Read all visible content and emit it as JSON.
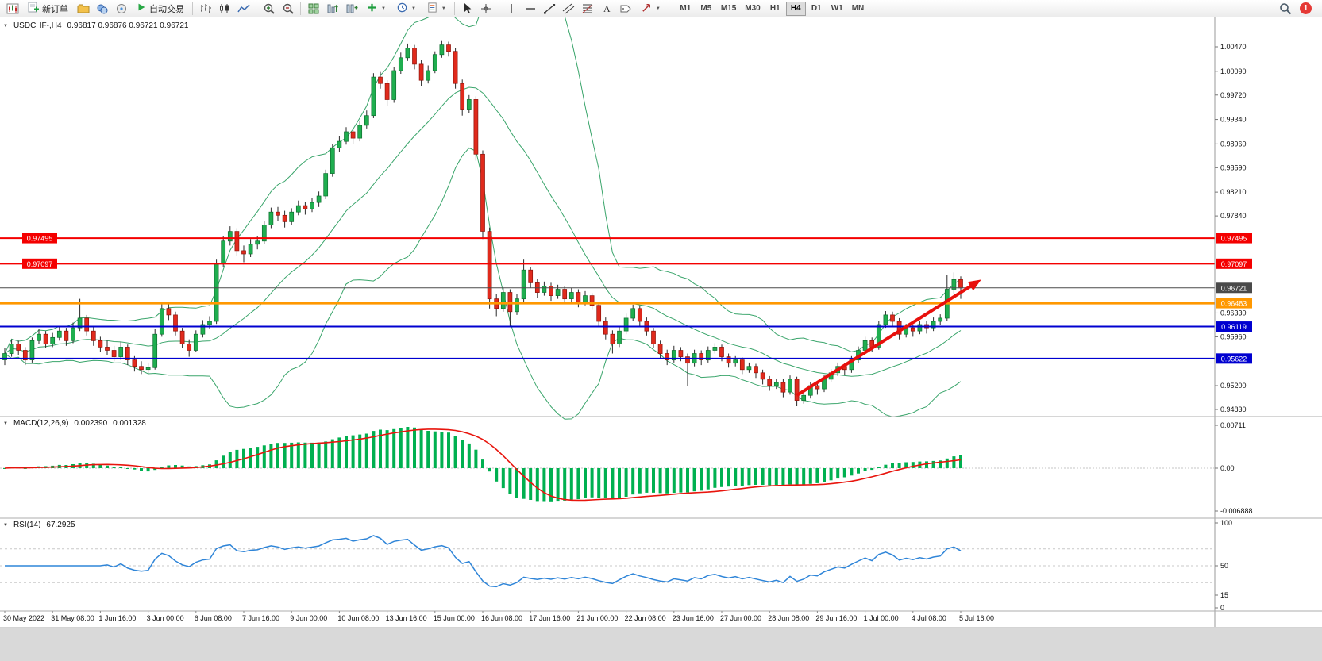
{
  "toolbar": {
    "new_order_label": "新订单",
    "autotrading_label": "自动交易",
    "timeframes": [
      "M1",
      "M5",
      "M15",
      "M30",
      "H1",
      "H4",
      "D1",
      "W1",
      "MN"
    ],
    "active_timeframe": "H4",
    "notification_count": "1"
  },
  "window": {
    "symbol_title": "USDCHF-,H4",
    "ohlc": "0.96817 0.96876 0.96721 0.96721"
  },
  "colors": {
    "bull": "#1fae4f",
    "bull_border": "#0e6e2f",
    "bear": "#e02a1c",
    "bear_border": "#8d130b",
    "wick": "#2a2a2a",
    "bollinger": "#3aa56b",
    "macd_hist": "#00b050",
    "macd_signal": "#e8150d",
    "rsi_line": "#2f85d8",
    "red": "#f40000",
    "blue": "#0000d0",
    "orange": "#ff9800",
    "dark": "#4a4a4a",
    "arrow": "#e8100c"
  },
  "chart_data": {
    "type": "candlestick",
    "symbol": "USDCHF-",
    "period": "H4",
    "candles": [
      [
        0.956,
        0.9578,
        0.9552,
        0.957
      ],
      [
        0.957,
        0.9592,
        0.9565,
        0.9585
      ],
      [
        0.9585,
        0.959,
        0.9568,
        0.9575
      ],
      [
        0.9575,
        0.958,
        0.9552,
        0.956
      ],
      [
        0.956,
        0.9595,
        0.9556,
        0.959
      ],
      [
        0.959,
        0.9608,
        0.9585,
        0.96
      ],
      [
        0.96,
        0.9605,
        0.9578,
        0.9585
      ],
      [
        0.9585,
        0.9602,
        0.958,
        0.9595
      ],
      [
        0.9595,
        0.9612,
        0.959,
        0.9605
      ],
      [
        0.9605,
        0.961,
        0.9582,
        0.959
      ],
      [
        0.959,
        0.9618,
        0.9586,
        0.961
      ],
      [
        0.961,
        0.9655,
        0.9605,
        0.9625
      ],
      [
        0.9625,
        0.963,
        0.9598,
        0.9605
      ],
      [
        0.9605,
        0.9612,
        0.9582,
        0.959
      ],
      [
        0.959,
        0.9596,
        0.9572,
        0.958
      ],
      [
        0.958,
        0.959,
        0.9568,
        0.9575
      ],
      [
        0.9575,
        0.9582,
        0.9558,
        0.9565
      ],
      [
        0.9565,
        0.9588,
        0.956,
        0.958
      ],
      [
        0.958,
        0.9584,
        0.9552,
        0.956
      ],
      [
        0.956,
        0.9566,
        0.9542,
        0.955
      ],
      [
        0.955,
        0.9558,
        0.9538,
        0.9545
      ],
      [
        0.9545,
        0.9556,
        0.9538,
        0.9548
      ],
      [
        0.9548,
        0.9608,
        0.9545,
        0.96
      ],
      [
        0.96,
        0.9648,
        0.9596,
        0.964
      ],
      [
        0.964,
        0.965,
        0.9622,
        0.963
      ],
      [
        0.963,
        0.9635,
        0.9598,
        0.9605
      ],
      [
        0.9605,
        0.961,
        0.9578,
        0.9585
      ],
      [
        0.9585,
        0.9592,
        0.9565,
        0.9575
      ],
      [
        0.9575,
        0.9606,
        0.9572,
        0.96
      ],
      [
        0.96,
        0.9622,
        0.9595,
        0.9615
      ],
      [
        0.9615,
        0.9628,
        0.9608,
        0.962
      ],
      [
        0.962,
        0.9716,
        0.9616,
        0.971
      ],
      [
        0.971,
        0.9752,
        0.9705,
        0.9745
      ],
      [
        0.9745,
        0.9768,
        0.9738,
        0.976
      ],
      [
        0.976,
        0.9765,
        0.9722,
        0.973
      ],
      [
        0.973,
        0.9738,
        0.9712,
        0.9725
      ],
      [
        0.9725,
        0.9748,
        0.972,
        0.974
      ],
      [
        0.974,
        0.9753,
        0.9732,
        0.9745
      ],
      [
        0.9745,
        0.9776,
        0.974,
        0.977
      ],
      [
        0.977,
        0.9797,
        0.9765,
        0.979
      ],
      [
        0.979,
        0.9798,
        0.9776,
        0.9785
      ],
      [
        0.9785,
        0.9792,
        0.9766,
        0.9775
      ],
      [
        0.9775,
        0.9796,
        0.977,
        0.979
      ],
      [
        0.979,
        0.9808,
        0.9785,
        0.98
      ],
      [
        0.98,
        0.9806,
        0.9786,
        0.9795
      ],
      [
        0.9795,
        0.9812,
        0.979,
        0.9805
      ],
      [
        0.9805,
        0.9822,
        0.9798,
        0.9815
      ],
      [
        0.9815,
        0.9856,
        0.981,
        0.985
      ],
      [
        0.985,
        0.9896,
        0.9845,
        0.989
      ],
      [
        0.989,
        0.9908,
        0.9884,
        0.99
      ],
      [
        0.99,
        0.9922,
        0.9895,
        0.9915
      ],
      [
        0.9915,
        0.992,
        0.9896,
        0.9905
      ],
      [
        0.9905,
        0.9932,
        0.99,
        0.9925
      ],
      [
        0.9925,
        0.9948,
        0.992,
        0.994
      ],
      [
        0.994,
        1.0006,
        0.9936,
        1.0
      ],
      [
        1.0,
        1.0008,
        0.9982,
        0.999
      ],
      [
        0.999,
        0.9995,
        0.9955,
        0.9965
      ],
      [
        0.9965,
        1.0016,
        0.996,
        1.001
      ],
      [
        1.001,
        1.0038,
        1.0005,
        1.003
      ],
      [
        1.003,
        1.0052,
        1.0025,
        1.0045
      ],
      [
        1.0045,
        1.005,
        1.0012,
        1.002
      ],
      [
        1.002,
        1.0026,
        0.9986,
        0.9995
      ],
      [
        0.9995,
        1.0018,
        0.999,
        1.001
      ],
      [
        1.001,
        1.004,
        1.0006,
        1.0035
      ],
      [
        1.0035,
        1.0056,
        1.003,
        1.005
      ],
      [
        1.005,
        1.0055,
        1.0032,
        1.004
      ],
      [
        1.004,
        1.0045,
        0.9982,
        0.999
      ],
      [
        0.999,
        0.9996,
        0.994,
        0.995
      ],
      [
        0.995,
        0.9972,
        0.9944,
        0.9965
      ],
      [
        0.9965,
        0.997,
        0.987,
        0.988
      ],
      [
        0.988,
        0.9886,
        0.9748,
        0.976
      ],
      [
        0.976,
        0.9766,
        0.964,
        0.9655
      ],
      [
        0.9655,
        0.9662,
        0.9628,
        0.964
      ],
      [
        0.964,
        0.9672,
        0.9635,
        0.9665
      ],
      [
        0.9665,
        0.967,
        0.9612,
        0.9635
      ],
      [
        0.9635,
        0.9662,
        0.963,
        0.9655
      ],
      [
        0.9655,
        0.9716,
        0.965,
        0.97
      ],
      [
        0.97,
        0.9705,
        0.9672,
        0.968
      ],
      [
        0.968,
        0.9686,
        0.9656,
        0.9665
      ],
      [
        0.9665,
        0.9682,
        0.966,
        0.9675
      ],
      [
        0.9675,
        0.968,
        0.9652,
        0.966
      ],
      [
        0.966,
        0.9677,
        0.9655,
        0.967
      ],
      [
        0.967,
        0.9675,
        0.9648,
        0.9655
      ],
      [
        0.9655,
        0.9672,
        0.965,
        0.9665
      ],
      [
        0.9665,
        0.967,
        0.9642,
        0.965
      ],
      [
        0.965,
        0.9667,
        0.9645,
        0.966
      ],
      [
        0.966,
        0.9664,
        0.9638,
        0.9645
      ],
      [
        0.9645,
        0.965,
        0.9612,
        0.962
      ],
      [
        0.962,
        0.9626,
        0.9592,
        0.96
      ],
      [
        0.96,
        0.9606,
        0.957,
        0.9585
      ],
      [
        0.9585,
        0.9612,
        0.958,
        0.9605
      ],
      [
        0.9605,
        0.9632,
        0.96,
        0.9625
      ],
      [
        0.9625,
        0.9646,
        0.962,
        0.964
      ],
      [
        0.964,
        0.9645,
        0.9612,
        0.962
      ],
      [
        0.962,
        0.9626,
        0.9598,
        0.9605
      ],
      [
        0.9605,
        0.961,
        0.9578,
        0.9585
      ],
      [
        0.9585,
        0.959,
        0.9562,
        0.957
      ],
      [
        0.957,
        0.9576,
        0.9552,
        0.956
      ],
      [
        0.956,
        0.9582,
        0.9556,
        0.9575
      ],
      [
        0.9575,
        0.958,
        0.9558,
        0.9565
      ],
      [
        0.9565,
        0.957,
        0.952,
        0.9555
      ],
      [
        0.9555,
        0.9576,
        0.955,
        0.957
      ],
      [
        0.957,
        0.9575,
        0.9552,
        0.956
      ],
      [
        0.956,
        0.9581,
        0.9556,
        0.9575
      ],
      [
        0.9575,
        0.9586,
        0.957,
        0.958
      ],
      [
        0.958,
        0.9584,
        0.9558,
        0.9565
      ],
      [
        0.9565,
        0.957,
        0.9548,
        0.9555
      ],
      [
        0.9555,
        0.9566,
        0.955,
        0.956
      ],
      [
        0.956,
        0.9564,
        0.9538,
        0.9545
      ],
      [
        0.9545,
        0.9556,
        0.954,
        0.955
      ],
      [
        0.955,
        0.9554,
        0.9532,
        0.954
      ],
      [
        0.954,
        0.9545,
        0.9522,
        0.953
      ],
      [
        0.953,
        0.9535,
        0.9512,
        0.952
      ],
      [
        0.952,
        0.9531,
        0.9515,
        0.9525
      ],
      [
        0.9525,
        0.953,
        0.9502,
        0.951
      ],
      [
        0.951,
        0.9536,
        0.9506,
        0.953
      ],
      [
        0.953,
        0.9534,
        0.9488,
        0.9497
      ],
      [
        0.9497,
        0.9511,
        0.9492,
        0.9505
      ],
      [
        0.9505,
        0.9526,
        0.95,
        0.952
      ],
      [
        0.952,
        0.9525,
        0.9506,
        0.9515
      ],
      [
        0.9515,
        0.9536,
        0.951,
        0.953
      ],
      [
        0.953,
        0.9546,
        0.9525,
        0.954
      ],
      [
        0.954,
        0.9556,
        0.9535,
        0.955
      ],
      [
        0.955,
        0.9555,
        0.9536,
        0.9545
      ],
      [
        0.9545,
        0.9566,
        0.954,
        0.956
      ],
      [
        0.956,
        0.9581,
        0.9555,
        0.9575
      ],
      [
        0.9575,
        0.9596,
        0.957,
        0.959
      ],
      [
        0.959,
        0.9595,
        0.9572,
        0.958
      ],
      [
        0.958,
        0.9621,
        0.9576,
        0.9615
      ],
      [
        0.9615,
        0.9636,
        0.961,
        0.963
      ],
      [
        0.963,
        0.9635,
        0.9612,
        0.962
      ],
      [
        0.962,
        0.9625,
        0.9592,
        0.96
      ],
      [
        0.96,
        0.9616,
        0.9595,
        0.961
      ],
      [
        0.961,
        0.9615,
        0.9596,
        0.9605
      ],
      [
        0.9605,
        0.9621,
        0.96,
        0.9615
      ],
      [
        0.9615,
        0.962,
        0.9601,
        0.961
      ],
      [
        0.961,
        0.9626,
        0.9605,
        0.962
      ],
      [
        0.962,
        0.9631,
        0.9614,
        0.9625
      ],
      [
        0.9625,
        0.9692,
        0.962,
        0.967
      ],
      [
        0.967,
        0.9696,
        0.9662,
        0.9685
      ],
      [
        0.9685,
        0.969,
        0.9655,
        0.96721
      ]
    ],
    "price_axis_ticks": [
      "1.00470",
      "1.00090",
      "0.99720",
      "0.99340",
      "0.98960",
      "0.98590",
      "0.98210",
      "0.97840",
      "0.96330",
      "0.95960",
      "0.95200",
      "0.94830"
    ],
    "price_tags": [
      {
        "value": "0.97495",
        "type": "red"
      },
      {
        "value": "0.97097",
        "type": "red"
      },
      {
        "value": "0.96721",
        "type": "dark"
      },
      {
        "value": "0.96483",
        "type": "orange"
      },
      {
        "value": "0.96119",
        "type": "blue"
      },
      {
        "value": "0.95622",
        "type": "blue"
      }
    ],
    "hlines": [
      {
        "price": 0.97495,
        "value": "0.97495",
        "type": "red",
        "width": 2,
        "left_tag": true
      },
      {
        "price": 0.97097,
        "value": "0.97097",
        "type": "red",
        "width": 2,
        "left_tag": true
      },
      {
        "price": 0.96483,
        "value": "0.96483",
        "type": "orange",
        "width": 3,
        "left_tag": false
      },
      {
        "price": 0.96119,
        "value": "0.96119",
        "type": "blue",
        "width": 2,
        "left_tag": false
      },
      {
        "price": 0.95622,
        "value": "0.95622",
        "type": "blue",
        "width": 2,
        "left_tag": false
      }
    ],
    "current_price": {
      "value": "0.96721",
      "price": 0.96721
    },
    "time_axis": [
      "30 May 2022",
      "31 May 08:00",
      "1 Jun 16:00",
      "3 Jun 00:00",
      "6 Jun 08:00",
      "7 Jun 16:00",
      "9 Jun 00:00",
      "10 Jun 08:00",
      "13 Jun 16:00",
      "15 Jun 00:00",
      "16 Jun 08:00",
      "17 Jun 16:00",
      "21 Jun 00:00",
      "22 Jun 08:00",
      "23 Jun 16:00",
      "27 Jun 00:00",
      "28 Jun 08:00",
      "29 Jun 16:00",
      "1 Jul 00:00",
      "4 Jul 08:00",
      "5 Jul 16:00"
    ],
    "indicators": {
      "bollinger": {
        "period": 20,
        "deviation": 2
      },
      "macd": {
        "name": "MACD(12,26,9)",
        "value_main": "0.002390",
        "value_signal": "0.001328",
        "axis": [
          "0.00711",
          "0.00",
          "-0.006888"
        ],
        "fast": 12,
        "slow": 26,
        "signal": 9
      },
      "rsi": {
        "name": "RSI(14)",
        "value": "67.2925",
        "axis": [
          "100",
          "50",
          "15",
          "0"
        ],
        "period": 14,
        "levels": [
          70,
          50,
          30
        ]
      }
    },
    "trend_arrow": {
      "from_index": 116,
      "from_price": 0.9505,
      "to_index": 143,
      "to_price": 0.9685
    }
  }
}
